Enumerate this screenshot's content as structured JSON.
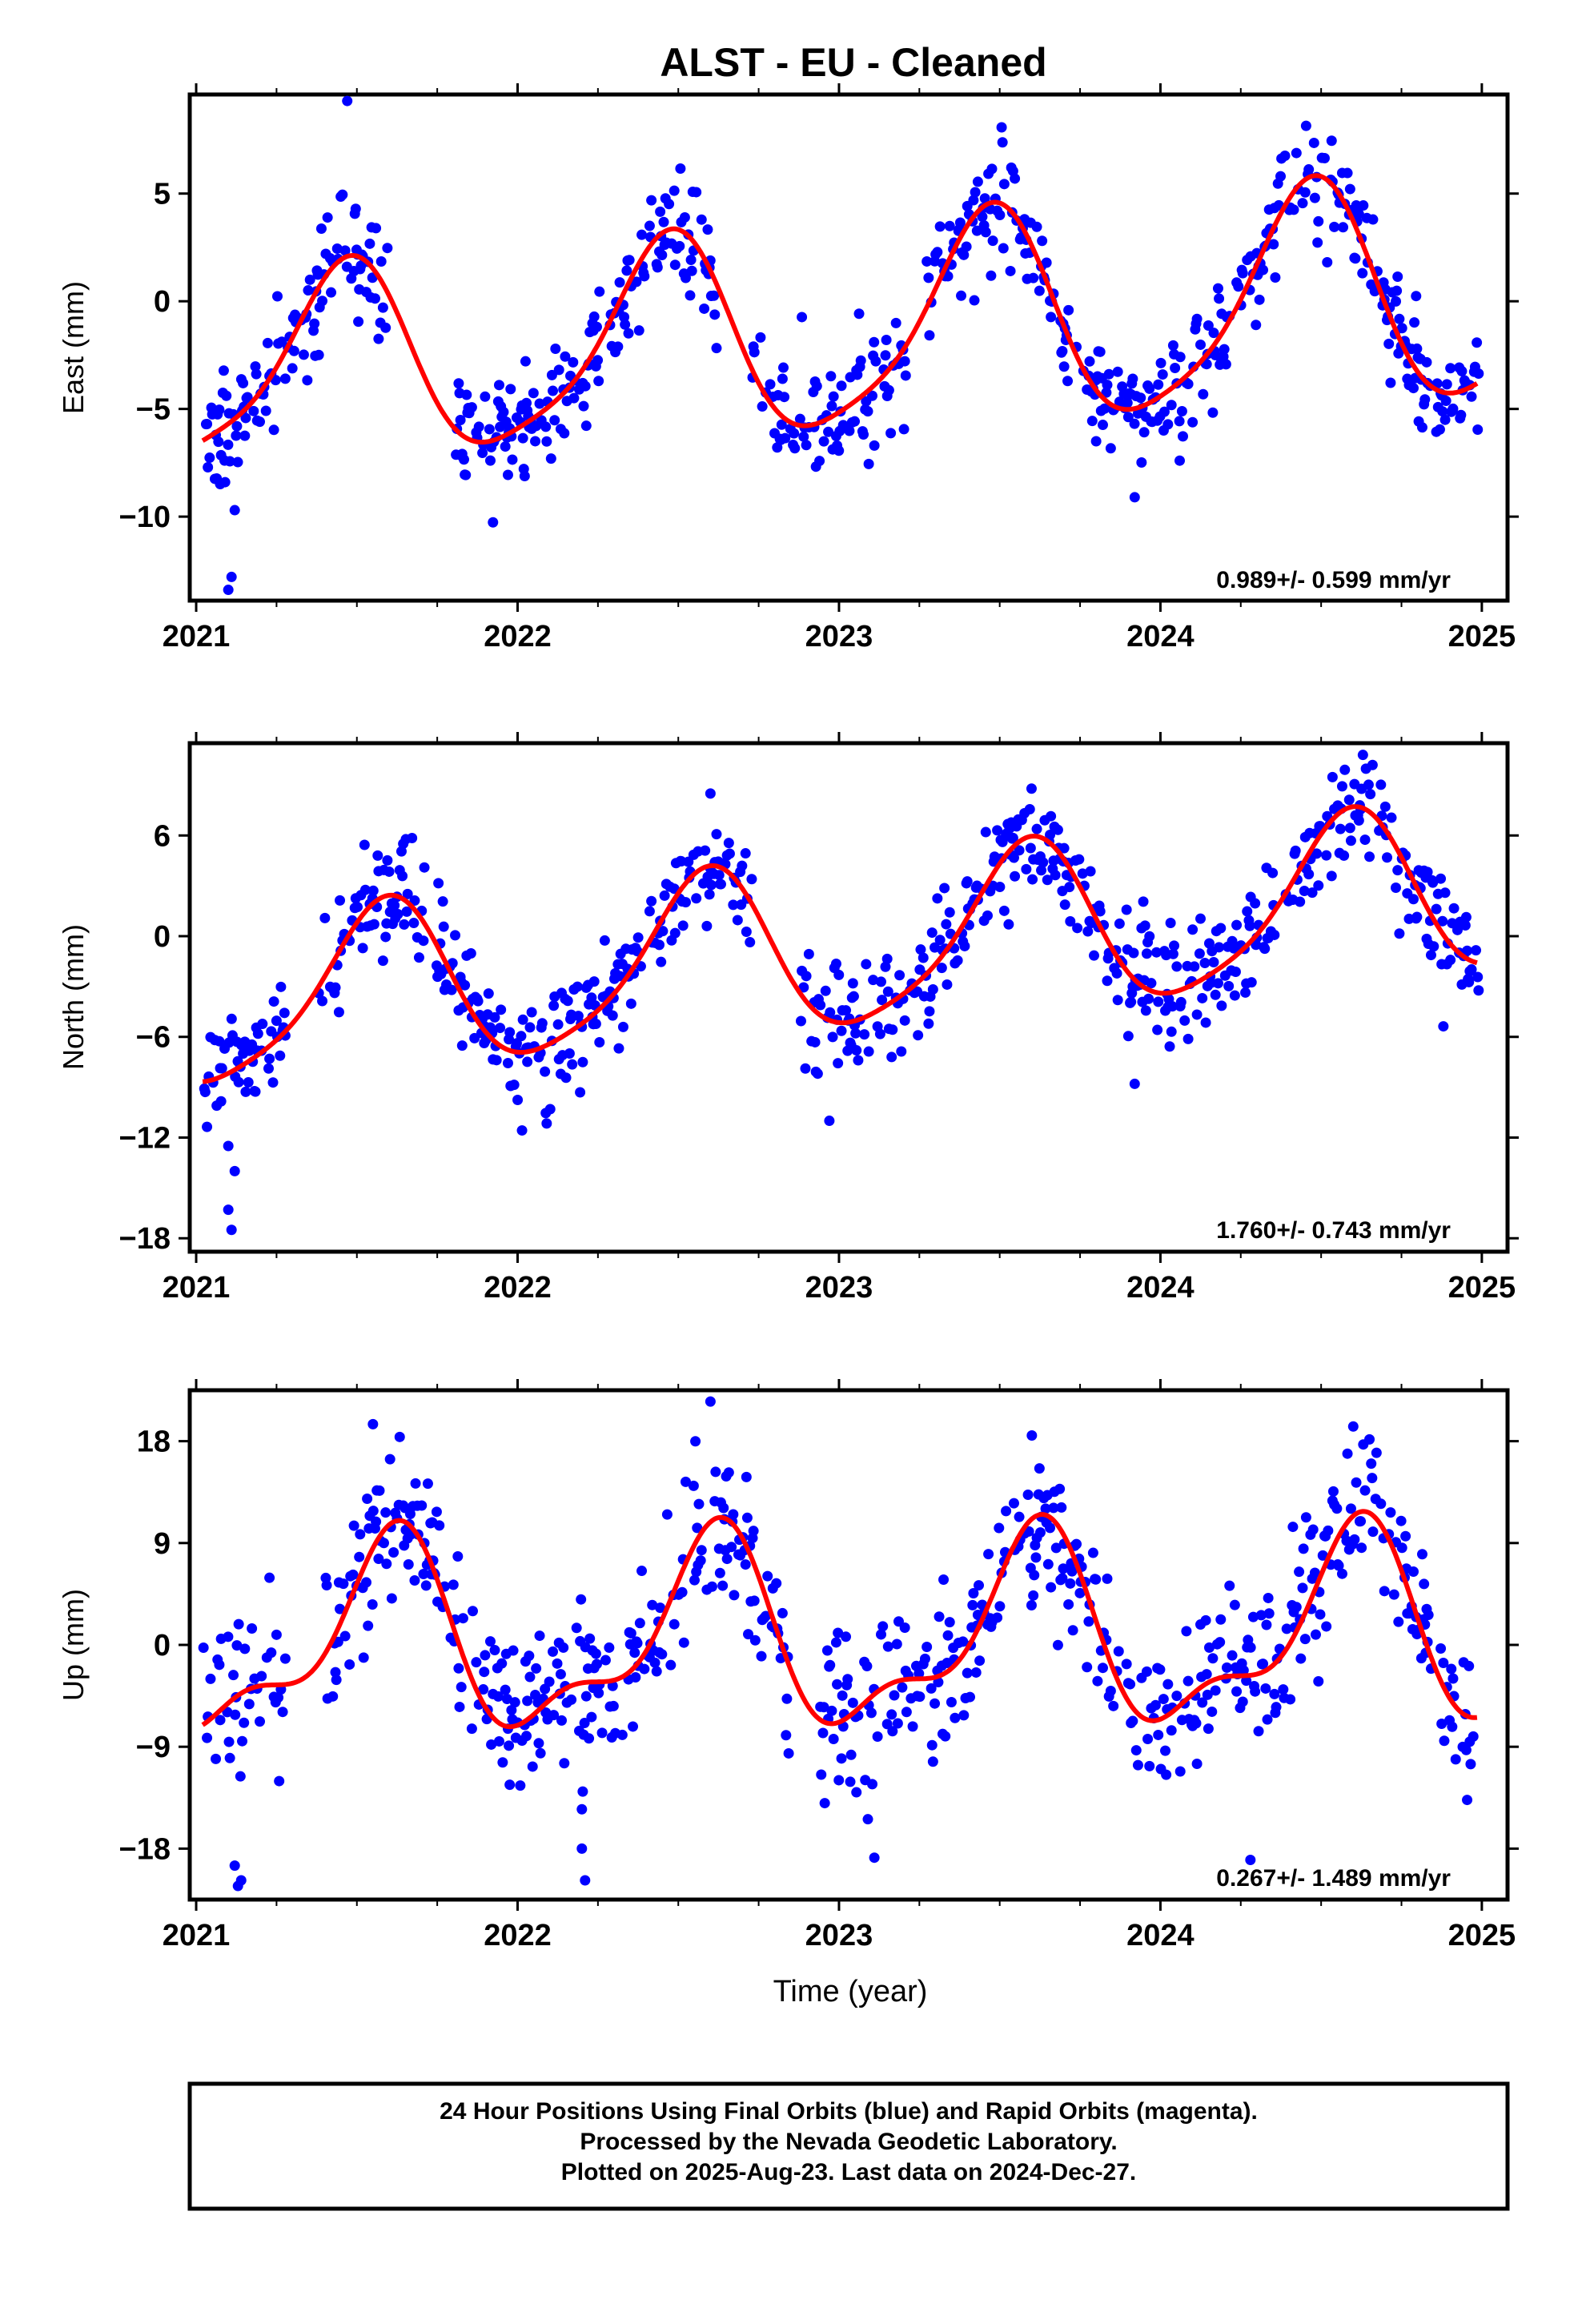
{
  "title": "ALST  - EU - Cleaned",
  "xlabel": "Time (year)",
  "footer": {
    "line1": "24 Hour Positions Using Final Orbits (blue) and Rapid Orbits (magenta).",
    "line2": "Processed by the Nevada Geodetic Laboratory.",
    "line3": "Plotted on 2025-Aug-23. Last data on 2024-Dec-27."
  },
  "colors": {
    "points": "#0000ff",
    "fit": "#ff0000",
    "frame": "#000000"
  },
  "chart_data": [
    {
      "type": "scatter",
      "panel": "east",
      "ylabel": "East (mm)",
      "rate_label": "0.989+/- 0.599 mm/yr",
      "xlim": [
        2020.98,
        2025.08
      ],
      "ylim": [
        -13.9,
        9.6
      ],
      "xticks": [
        2021,
        2022,
        2023,
        2024,
        2025
      ],
      "yticks": [
        5,
        0,
        -5,
        -10
      ],
      "fit": {
        "intercept": -1.5,
        "rate": 0.989,
        "t0": 2023,
        "amp": 4.2,
        "peak": 2021.46,
        "annual_amp_growth": 0.25,
        "semi_amp": 0.9
      },
      "noise_sd": 1.35,
      "seed": 11,
      "gaps": [
        [
          2021.6,
          2021.8
        ],
        [
          2022.62,
          2022.73
        ],
        [
          2023.21,
          2023.27
        ]
      ],
      "outliers": [
        {
          "x": 2021.1,
          "y": -13.4
        },
        {
          "x": 2021.11,
          "y": -12.8
        },
        {
          "x": 2021.12,
          "y": -9.7
        },
        {
          "x": 2021.09,
          "y": -8.4
        },
        {
          "x": 2021.47,
          "y": 9.3
        },
        {
          "x": 2023.92,
          "y": -9.1
        },
        {
          "x": 2024.06,
          "y": -7.4
        },
        {
          "x": 2024.01,
          "y": -6.0
        },
        {
          "x": 2023.8,
          "y": -6.5
        },
        {
          "x": 2023.11,
          "y": -6.7
        }
      ]
    },
    {
      "type": "scatter",
      "panel": "north",
      "ylabel": "North (mm)",
      "rate_label": "1.760+/- 0.743 mm/yr",
      "xlim": [
        2020.98,
        2025.08
      ],
      "ylim": [
        -18.8,
        11.5
      ],
      "xticks": [
        2021,
        2022,
        2023,
        2024,
        2025
      ],
      "yticks": [
        6,
        0,
        -6,
        -12,
        -18
      ],
      "fit": {
        "intercept": -0.8,
        "rate": 1.76,
        "t0": 2023,
        "amp": 4.9,
        "peak": 2021.58,
        "annual_amp_growth": 0.0,
        "semi_amp": 0.9
      },
      "noise_sd": 1.6,
      "seed": 23,
      "gaps": [
        [
          2021.28,
          2021.38
        ],
        [
          2022.73,
          2022.88
        ]
      ],
      "outliers": [
        {
          "x": 2021.1,
          "y": -16.3
        },
        {
          "x": 2021.11,
          "y": -17.5
        },
        {
          "x": 2021.12,
          "y": -14.0
        },
        {
          "x": 2021.1,
          "y": -12.5
        },
        {
          "x": 2022.97,
          "y": -11.0
        },
        {
          "x": 2022.6,
          "y": 8.5
        },
        {
          "x": 2023.92,
          "y": -8.8
        },
        {
          "x": 2024.63,
          "y": 10.8
        },
        {
          "x": 2024.66,
          "y": 10.2
        }
      ]
    },
    {
      "type": "scatter",
      "panel": "up",
      "ylabel": "Up (mm)",
      "rate_label": "0.267+/- 1.489 mm/yr",
      "xlim": [
        2020.98,
        2025.08
      ],
      "ylim": [
        -22.5,
        22.5
      ],
      "xticks": [
        2021,
        2022,
        2023,
        2024,
        2025
      ],
      "yticks": [
        18,
        9,
        0,
        -9,
        -18
      ],
      "fit": {
        "intercept": 0.5,
        "rate": 0.267,
        "t0": 2023,
        "amp": 7.8,
        "peak": 2021.6,
        "annual_amp_growth": 0.0,
        "semi_amp": 3.3
      },
      "noise_sd": 3.6,
      "seed": 37,
      "gaps": [
        [
          2021.28,
          2021.4
        ],
        [
          2022.85,
          2022.94
        ]
      ],
      "outliers": [
        {
          "x": 2021.12,
          "y": -19.5
        },
        {
          "x": 2021.13,
          "y": -21.3
        },
        {
          "x": 2021.14,
          "y": -20.8
        },
        {
          "x": 2022.6,
          "y": 21.5
        },
        {
          "x": 2022.21,
          "y": -20.8
        },
        {
          "x": 2022.2,
          "y": -18.0
        },
        {
          "x": 2023.11,
          "y": -18.8
        },
        {
          "x": 2024.28,
          "y": -19.0
        },
        {
          "x": 2024.6,
          "y": 19.3
        },
        {
          "x": 2021.55,
          "y": 19.5
        },
        {
          "x": 2023.6,
          "y": 18.5
        }
      ]
    }
  ]
}
